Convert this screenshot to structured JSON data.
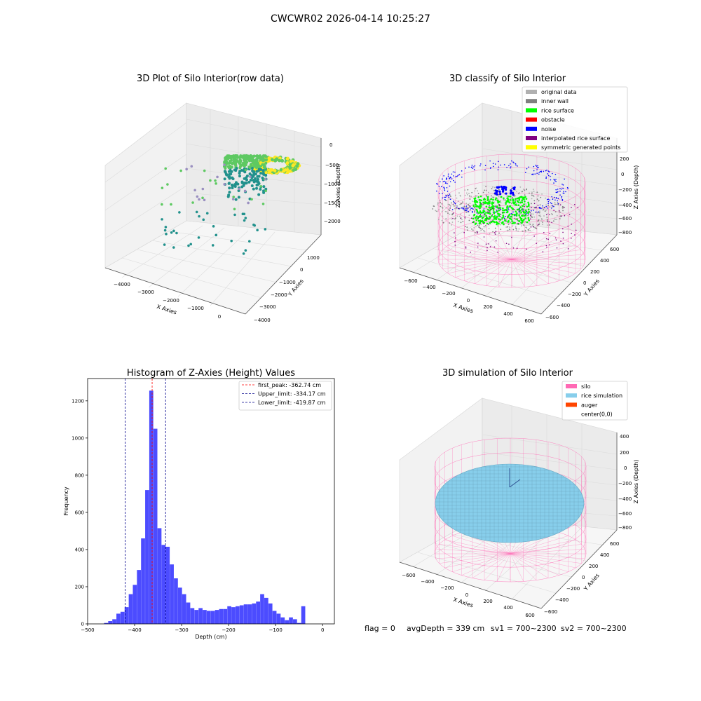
{
  "suptitle": "CWCWR02 2026-04-14 10:25:27",
  "footer": {
    "flag": "flag = 0",
    "avg_depth": "avgDepth = 339 cm",
    "sv1": "sv1 = 700~2300",
    "sv2": "sv2 = 700~2300"
  },
  "chart_data": [
    {
      "type": "scatter",
      "projection": "3d",
      "title": "3D Plot of Silo Interior(row data)",
      "xlabel": "X Axies",
      "ylabel": "Y Axies",
      "zlabel": "Z Axies (Depth)",
      "x_ticks": [
        "−4000",
        "−3000",
        "−2000",
        "−1000",
        "0"
      ],
      "y_ticks": [
        "−4000",
        "−3000",
        "−2000",
        "−1000",
        "0",
        "1000"
      ],
      "z_ticks": [
        "0",
        "−500",
        "−1000",
        "−1500",
        "−2000"
      ],
      "colormap": [
        "#440154",
        "#21918c",
        "#5ec962",
        "#fde725"
      ]
    },
    {
      "type": "scatter",
      "projection": "3d",
      "title": "3D classify of Silo Interior",
      "xlabel": "X Axies",
      "ylabel": "Y Axies",
      "zlabel": "Z Axies (Depth)",
      "x_ticks": [
        "−600",
        "−400",
        "−200",
        "0",
        "200",
        "400",
        "600"
      ],
      "y_ticks": [
        "−600",
        "−400",
        "−200",
        "0",
        "200",
        "400",
        "600"
      ],
      "z_ticks": [
        "200",
        "0",
        "−200",
        "−400",
        "−600",
        "−800"
      ],
      "legend_position": "top-right",
      "legend": [
        {
          "label": "original data",
          "color": "#b0b0b0"
        },
        {
          "label": "inner wall",
          "color": "#808080"
        },
        {
          "label": "rice surface",
          "color": "#00ff00"
        },
        {
          "label": "obstacle",
          "color": "#ff0000"
        },
        {
          "label": "noise",
          "color": "#0000ff"
        },
        {
          "label": "interpolated rice surface",
          "color": "#800080"
        },
        {
          "label": "symmetric generated points",
          "color": "#ffff00"
        }
      ]
    },
    {
      "type": "bar",
      "title": "Histogram of Z-Axies (Height) Values",
      "xlabel": "Depth (cm)",
      "ylabel": "Frequency",
      "xlim": [
        -500,
        25
      ],
      "ylim": [
        0,
        1320
      ],
      "x_ticks": [
        -500,
        -400,
        -300,
        -200,
        -100,
        0
      ],
      "x_tick_labels": [
        "−500",
        "−400",
        "−300",
        "−200",
        "−100",
        "0"
      ],
      "y_ticks": [
        0,
        200,
        400,
        600,
        800,
        1000,
        1200
      ],
      "y_tick_labels": [
        "0",
        "200",
        "400",
        "600",
        "800",
        "1000",
        "1200"
      ],
      "bar_color": "#0000ff",
      "bin_start": -465,
      "bin_width": 8.74,
      "values": [
        5,
        15,
        25,
        55,
        65,
        90,
        160,
        210,
        290,
        460,
        720,
        1255,
        1050,
        515,
        425,
        415,
        320,
        245,
        195,
        160,
        115,
        85,
        75,
        85,
        75,
        70,
        70,
        75,
        80,
        80,
        95,
        90,
        95,
        100,
        105,
        105,
        110,
        120,
        160,
        140,
        110,
        70,
        55,
        35,
        20,
        35,
        25,
        5,
        95
      ],
      "lines": [
        {
          "label": "first_peak: -362.74 cm",
          "x": -362.74,
          "color": "#ff0000"
        },
        {
          "label": "Upper_limit: -334.17 cm",
          "x": -334.17,
          "color": "#00008b"
        },
        {
          "label": "Lower_limit: -419.87 cm",
          "x": -419.87,
          "color": "#00008b"
        }
      ],
      "legend_position": "top-right"
    },
    {
      "type": "scatter",
      "projection": "3d",
      "title": "3D simulation of Silo Interior",
      "xlabel": "X Axies",
      "ylabel": "Y Axies",
      "zlabel": "Z Axies (Depth)",
      "x_ticks": [
        "−600",
        "−400",
        "−200",
        "0",
        "200",
        "400",
        "600"
      ],
      "y_ticks": [
        "−600",
        "−400",
        "−200",
        "0",
        "200",
        "400",
        "600"
      ],
      "z_ticks": [
        "400",
        "200",
        "0",
        "−200",
        "−400",
        "−600",
        "−800"
      ],
      "legend_position": "top-right",
      "legend": [
        {
          "label": "silo",
          "color": "#ff69b4"
        },
        {
          "label": "rice simulation",
          "color": "#87ceeb"
        },
        {
          "label": "auger",
          "color": "#ff4500"
        },
        {
          "label": "center(0,0)",
          "color": "#ffffff"
        }
      ]
    }
  ]
}
